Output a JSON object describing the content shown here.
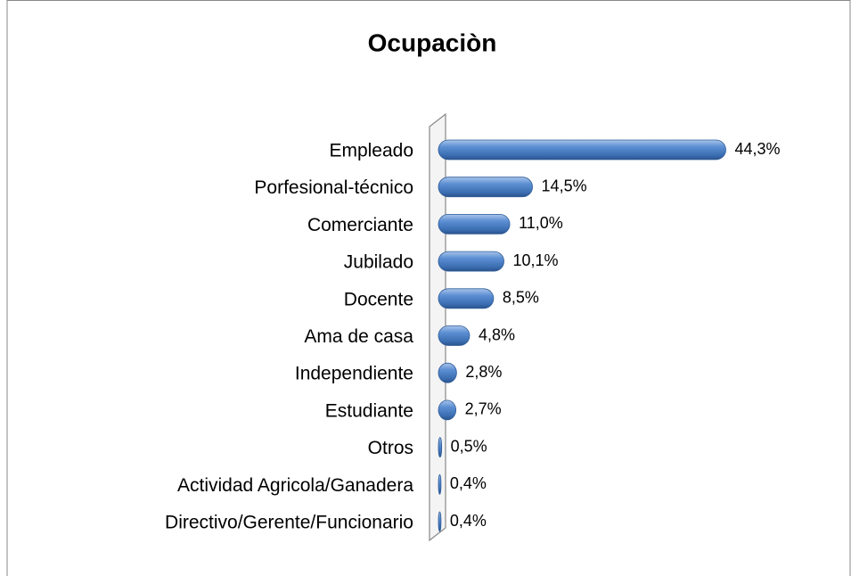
{
  "chart_data": {
    "type": "bar",
    "orientation": "horizontal",
    "title": "Ocupaciòn",
    "categories": [
      "Empleado",
      "Porfesional-técnico",
      "Comerciante",
      "Jubilado",
      "Docente",
      "Ama de casa",
      "Independiente",
      "Estudiante",
      "Otros",
      "Actividad Agricola/Ganadera",
      "Directivo/Gerente/Funcionario"
    ],
    "values": [
      44.3,
      14.5,
      11.0,
      10.1,
      8.5,
      4.8,
      2.8,
      2.7,
      0.5,
      0.4,
      0.4
    ],
    "value_labels": [
      "44,3%",
      "14,5%",
      "11,0%",
      "10,1%",
      "8,5%",
      "4,8%",
      "2,8%",
      "2,7%",
      "0,5%",
      "0,4%",
      "0,4%"
    ],
    "color": "#4f81bd",
    "xlim": [
      0,
      50
    ]
  }
}
